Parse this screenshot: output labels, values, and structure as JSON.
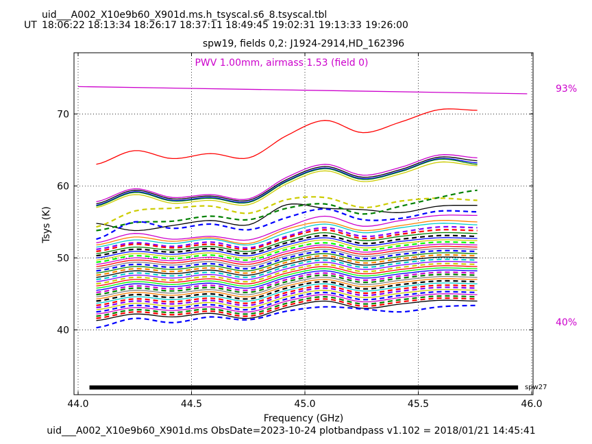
{
  "header": {
    "file_title": "uid___A002_X10e9b60_X901d.ms.h_tsyscal.s6_8.tsyscal.tbl",
    "ut_label": "UT",
    "ut_times": [
      "18:06:22",
      "18:13:34",
      "18:26:17",
      "18:37:11",
      "18:49:45",
      "19:02:31",
      "19:13:33",
      "19:26:00"
    ]
  },
  "footer": {
    "text": "uid___A002_X10e9b60_X901d.ms  ObsDate=2023-10-24   plotbandpass v1.102 = 2018/01/21 14:45:41"
  },
  "chart_data": {
    "type": "line",
    "title": "spw19,  fields 0,2: J1924-2914,HD_162396",
    "xlabel": "Frequency (GHz)",
    "ylabel": "Tsys (K)",
    "xlim": [
      44.0,
      46.0
    ],
    "ylim": [
      31.0,
      78.5
    ],
    "x_ticks": [
      44.0,
      44.5,
      45.0,
      45.5,
      46.0
    ],
    "x_tick_labels": [
      "44.0",
      "44.5",
      "45.0",
      "45.5",
      "46.0"
    ],
    "y_ticks": [
      40,
      50,
      60,
      70
    ],
    "y_tick_labels": [
      "40",
      "50",
      "60",
      "70"
    ],
    "grid": true,
    "annotations": {
      "pwv": "PWV 1.00mm, airmass 1.53 (field 0)",
      "transmission_top_label": "93%",
      "transmission_bottom_label": "40%",
      "spw_tag": "spw27"
    },
    "colors": {
      "atm": "#cc00cc",
      "palette": [
        "#0000ff",
        "#008000",
        "#ff0000",
        "#00cccc",
        "#cc00cc",
        "#cccc00",
        "#000000",
        "#ff8000",
        "#8000ff",
        "#00ff00",
        "#808080"
      ]
    },
    "freq_range": [
      44.08,
      45.76
    ],
    "band_x": [
      44.05,
      45.94
    ],
    "band_y": 32.0,
    "atm_transmission": {
      "x": [
        44.0,
        45.98
      ],
      "y": [
        73.8,
        72.8
      ]
    },
    "series": [
      {
        "color": "#ff0000",
        "dashed": false,
        "values": [
          63.0,
          64.9,
          63.8,
          64.5,
          63.9,
          67.0,
          69.1,
          67.4,
          68.9,
          70.6,
          70.5
        ]
      },
      {
        "color": "#cc00cc",
        "dashed": false,
        "values": [
          57.8,
          59.6,
          58.4,
          58.8,
          58.2,
          61.2,
          63.0,
          61.5,
          62.6,
          64.3,
          63.9
        ]
      },
      {
        "color": "#000000",
        "dashed": false,
        "values": [
          57.5,
          59.4,
          58.2,
          58.6,
          58.0,
          60.9,
          62.7,
          61.2,
          62.3,
          64.0,
          63.5
        ]
      },
      {
        "color": "#0000ff",
        "dashed": false,
        "values": [
          57.3,
          59.2,
          58.0,
          58.4,
          57.8,
          60.7,
          62.5,
          61.0,
          62.1,
          63.8,
          63.2
        ]
      },
      {
        "color": "#008000",
        "dashed": false,
        "values": [
          57.2,
          59.1,
          57.9,
          58.3,
          57.7,
          60.6,
          62.4,
          60.9,
          62.0,
          63.7,
          63.0
        ]
      },
      {
        "color": "#cccc00",
        "dashed": false,
        "values": [
          57.0,
          58.8,
          57.6,
          58.0,
          57.4,
          60.3,
          62.1,
          60.6,
          61.7,
          63.3,
          62.8
        ]
      },
      {
        "color": "#000000",
        "dashed": false,
        "values": [
          54.8,
          53.8,
          54.5,
          55.2,
          54.6,
          57.4,
          56.9,
          56.7,
          56.3,
          57.2,
          57.3
        ]
      },
      {
        "color": "#cccc00",
        "dashed": true,
        "values": [
          54.3,
          56.5,
          56.9,
          57.2,
          56.2,
          58.1,
          58.4,
          57.0,
          57.9,
          58.3,
          58.0
        ]
      },
      {
        "color": "#008000",
        "dashed": true,
        "values": [
          53.8,
          54.9,
          55.1,
          55.8,
          55.3,
          56.9,
          57.5,
          56.1,
          57.2,
          58.4,
          59.4
        ]
      },
      {
        "color": "#0000ff",
        "dashed": true,
        "values": [
          52.6,
          55.0,
          54.1,
          54.7,
          53.9,
          55.6,
          56.8,
          55.3,
          55.5,
          56.5,
          56.4
        ]
      },
      {
        "color": "#cc00cc",
        "dashed": false,
        "values": [
          52.1,
          53.4,
          52.6,
          53.0,
          52.5,
          54.3,
          55.8,
          54.4,
          55.2,
          55.9,
          55.9
        ]
      },
      {
        "color": "#ff8000",
        "dashed": false,
        "values": [
          51.8,
          52.9,
          52.3,
          52.8,
          52.0,
          54.0,
          55.0,
          53.8,
          54.5,
          55.2,
          55.0
        ]
      },
      {
        "color": "#00cccc",
        "dashed": false,
        "values": [
          51.5,
          52.5,
          52.0,
          52.6,
          51.8,
          53.5,
          54.7,
          53.5,
          54.2,
          54.8,
          54.6
        ]
      },
      {
        "color": "#8000ff",
        "dashed": true,
        "values": [
          51.2,
          52.1,
          51.6,
          52.2,
          51.4,
          53.0,
          54.2,
          53.0,
          53.6,
          54.3,
          54.2
        ]
      },
      {
        "color": "#ff0000",
        "dashed": true,
        "values": [
          50.9,
          51.9,
          51.4,
          51.9,
          51.2,
          52.8,
          53.9,
          52.7,
          53.3,
          53.9,
          53.8
        ]
      },
      {
        "color": "#008000",
        "dashed": false,
        "values": [
          50.6,
          51.5,
          51.1,
          51.6,
          50.9,
          52.4,
          53.5,
          52.4,
          53.0,
          53.5,
          53.4
        ]
      },
      {
        "color": "#000000",
        "dashed": true,
        "values": [
          50.3,
          51.2,
          50.8,
          51.3,
          50.6,
          52.1,
          53.1,
          52.0,
          52.6,
          53.1,
          53.0
        ]
      },
      {
        "color": "#0000ff",
        "dashed": false,
        "values": [
          50.0,
          50.9,
          50.5,
          51.0,
          50.3,
          51.8,
          52.8,
          51.7,
          52.3,
          52.8,
          52.7
        ]
      },
      {
        "color": "#cccc00",
        "dashed": false,
        "values": [
          49.7,
          50.6,
          50.2,
          50.7,
          50.0,
          51.5,
          52.5,
          51.4,
          52.0,
          52.5,
          52.4
        ]
      },
      {
        "color": "#00ff00",
        "dashed": true,
        "values": [
          49.4,
          50.3,
          49.9,
          50.4,
          49.7,
          51.2,
          52.1,
          51.1,
          51.7,
          52.2,
          52.1
        ]
      },
      {
        "color": "#cc00cc",
        "dashed": false,
        "values": [
          49.1,
          50.0,
          49.6,
          50.1,
          49.4,
          50.9,
          51.8,
          50.8,
          51.4,
          51.9,
          51.8
        ]
      },
      {
        "color": "#ff0000",
        "dashed": false,
        "values": [
          48.8,
          49.7,
          49.3,
          49.8,
          49.1,
          50.6,
          51.5,
          50.5,
          51.1,
          51.6,
          51.5
        ]
      },
      {
        "color": "#808080",
        "dashed": false,
        "values": [
          48.5,
          49.4,
          49.0,
          49.5,
          48.8,
          50.3,
          51.2,
          50.2,
          50.8,
          51.3,
          51.2
        ]
      },
      {
        "color": "#0000ff",
        "dashed": true,
        "values": [
          48.2,
          49.1,
          48.7,
          49.2,
          48.5,
          50.0,
          50.9,
          49.9,
          50.5,
          51.0,
          50.9
        ]
      },
      {
        "color": "#008000",
        "dashed": false,
        "values": [
          47.9,
          48.8,
          48.4,
          48.9,
          48.2,
          49.7,
          50.6,
          49.6,
          50.2,
          50.7,
          50.6
        ]
      },
      {
        "color": "#ff8000",
        "dashed": true,
        "values": [
          47.6,
          48.5,
          48.1,
          48.6,
          47.9,
          49.4,
          50.3,
          49.3,
          49.9,
          50.4,
          50.3
        ]
      },
      {
        "color": "#000000",
        "dashed": false,
        "values": [
          47.3,
          48.2,
          47.8,
          48.3,
          47.6,
          49.1,
          50.0,
          49.0,
          49.6,
          50.1,
          50.0
        ]
      },
      {
        "color": "#00cccc",
        "dashed": true,
        "values": [
          47.0,
          47.9,
          47.5,
          48.0,
          47.3,
          48.8,
          49.7,
          48.7,
          49.3,
          49.8,
          49.7
        ]
      },
      {
        "color": "#8000ff",
        "dashed": false,
        "values": [
          46.7,
          47.6,
          47.2,
          47.7,
          47.0,
          48.5,
          49.4,
          48.4,
          49.0,
          49.5,
          49.4
        ]
      },
      {
        "color": "#cccc00",
        "dashed": true,
        "values": [
          46.4,
          47.3,
          46.9,
          47.4,
          46.7,
          48.2,
          49.1,
          48.1,
          48.7,
          49.2,
          49.1
        ]
      },
      {
        "color": "#ff0000",
        "dashed": false,
        "values": [
          46.1,
          47.0,
          46.6,
          47.1,
          46.4,
          47.9,
          48.8,
          47.8,
          48.4,
          48.9,
          48.8
        ]
      },
      {
        "color": "#00ff00",
        "dashed": false,
        "values": [
          45.8,
          46.7,
          46.3,
          46.8,
          46.1,
          47.6,
          48.5,
          47.5,
          48.1,
          48.6,
          48.5
        ]
      },
      {
        "color": "#0000ff",
        "dashed": false,
        "values": [
          45.5,
          46.4,
          46.0,
          46.5,
          45.8,
          47.3,
          48.2,
          47.2,
          47.8,
          48.3,
          48.2
        ]
      },
      {
        "color": "#cc00cc",
        "dashed": true,
        "values": [
          45.2,
          46.1,
          45.7,
          46.2,
          45.5,
          47.0,
          47.9,
          46.9,
          47.5,
          48.0,
          47.9
        ]
      },
      {
        "color": "#008000",
        "dashed": true,
        "values": [
          44.9,
          45.8,
          45.4,
          45.9,
          45.2,
          46.7,
          47.6,
          46.6,
          47.2,
          47.7,
          47.6
        ]
      },
      {
        "color": "#808080",
        "dashed": false,
        "values": [
          44.6,
          45.5,
          45.1,
          45.6,
          44.9,
          46.4,
          47.3,
          46.3,
          46.9,
          47.4,
          47.3
        ]
      },
      {
        "color": "#ff8000",
        "dashed": false,
        "values": [
          44.3,
          45.2,
          44.8,
          45.3,
          44.6,
          46.1,
          47.0,
          46.0,
          46.6,
          47.1,
          47.0
        ]
      },
      {
        "color": "#000000",
        "dashed": true,
        "values": [
          44.0,
          44.9,
          44.5,
          45.0,
          44.3,
          45.8,
          46.7,
          45.7,
          46.3,
          46.8,
          46.7
        ]
      },
      {
        "color": "#00cccc",
        "dashed": false,
        "values": [
          43.7,
          44.6,
          44.2,
          44.7,
          44.0,
          45.5,
          46.4,
          45.4,
          46.0,
          46.5,
          46.4
        ]
      },
      {
        "color": "#ff0000",
        "dashed": true,
        "values": [
          43.4,
          44.3,
          43.9,
          44.4,
          43.7,
          45.2,
          46.1,
          45.1,
          45.7,
          46.2,
          46.1
        ]
      },
      {
        "color": "#8000ff",
        "dashed": true,
        "values": [
          43.1,
          44.0,
          43.6,
          44.1,
          43.4,
          44.9,
          45.8,
          44.8,
          45.4,
          45.9,
          45.8
        ]
      },
      {
        "color": "#cccc00",
        "dashed": false,
        "values": [
          42.8,
          43.7,
          43.3,
          43.8,
          43.1,
          44.6,
          45.5,
          44.5,
          45.1,
          45.6,
          45.5
        ]
      },
      {
        "color": "#0000ff",
        "dashed": true,
        "values": [
          42.5,
          43.4,
          43.0,
          43.5,
          42.8,
          44.3,
          45.2,
          44.2,
          44.8,
          45.3,
          45.2
        ]
      },
      {
        "color": "#cc00cc",
        "dashed": false,
        "values": [
          42.2,
          43.1,
          42.7,
          43.2,
          42.5,
          44.0,
          44.9,
          43.9,
          44.5,
          45.0,
          44.9
        ]
      },
      {
        "color": "#008000",
        "dashed": true,
        "values": [
          41.9,
          42.8,
          42.4,
          42.9,
          42.2,
          43.7,
          44.6,
          43.6,
          44.2,
          44.7,
          44.6
        ]
      },
      {
        "color": "#ff0000",
        "dashed": true,
        "values": [
          41.6,
          42.5,
          42.1,
          42.6,
          41.9,
          43.4,
          44.3,
          43.3,
          43.9,
          44.4,
          44.3
        ]
      },
      {
        "color": "#000000",
        "dashed": false,
        "values": [
          41.3,
          42.2,
          41.8,
          42.3,
          41.6,
          43.1,
          44.0,
          43.0,
          43.6,
          44.1,
          44.0
        ]
      },
      {
        "color": "#0000ff",
        "dashed": true,
        "values": [
          40.3,
          41.6,
          41.0,
          41.8,
          41.4,
          42.6,
          43.2,
          42.9,
          42.5,
          43.2,
          43.4
        ]
      }
    ]
  }
}
